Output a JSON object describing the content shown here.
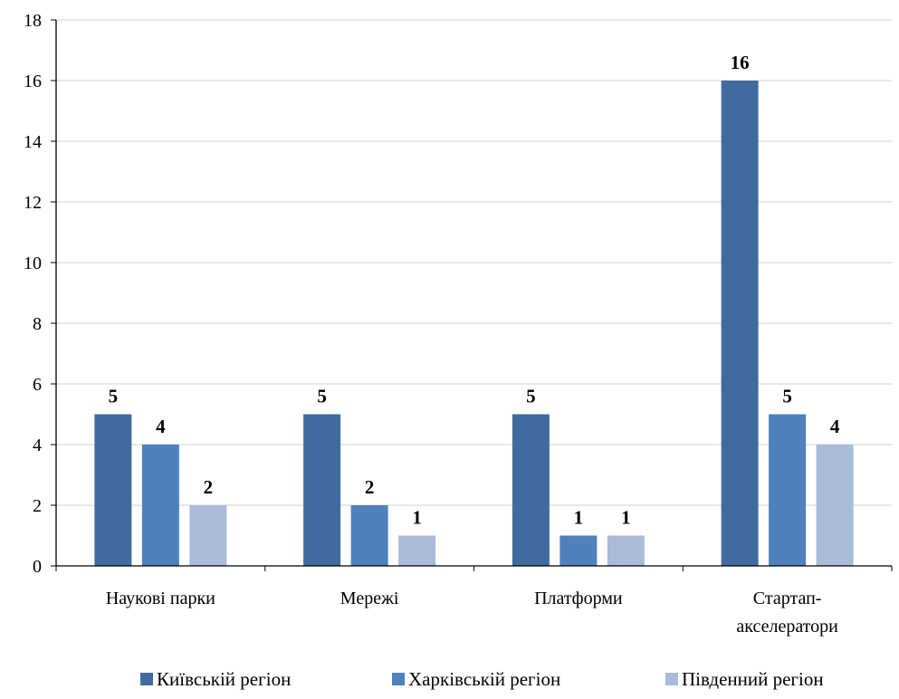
{
  "chart_data": {
    "type": "bar",
    "categories": [
      [
        "Наукові парки"
      ],
      [
        "Мережі"
      ],
      [
        "Платформи"
      ],
      [
        "Стартап-",
        "акселератори"
      ]
    ],
    "series": [
      {
        "name": "Київській регіон",
        "color": "#406b9e",
        "values": [
          5,
          5,
          5,
          16
        ]
      },
      {
        "name": "Харківській регіон",
        "color": "#4f81bd",
        "values": [
          4,
          2,
          1,
          5
        ]
      },
      {
        "name": "Південний регіон",
        "color": "#a9bbd9",
        "values": [
          2,
          1,
          1,
          4
        ]
      }
    ],
    "ylim": [
      0,
      18
    ],
    "yticks": [
      "0",
      "2",
      "4",
      "6",
      "8",
      "10",
      "12",
      "14",
      "16",
      "18"
    ],
    "grid": true,
    "legend_position": "bottom",
    "title": "",
    "xlabel": "",
    "ylabel": ""
  }
}
